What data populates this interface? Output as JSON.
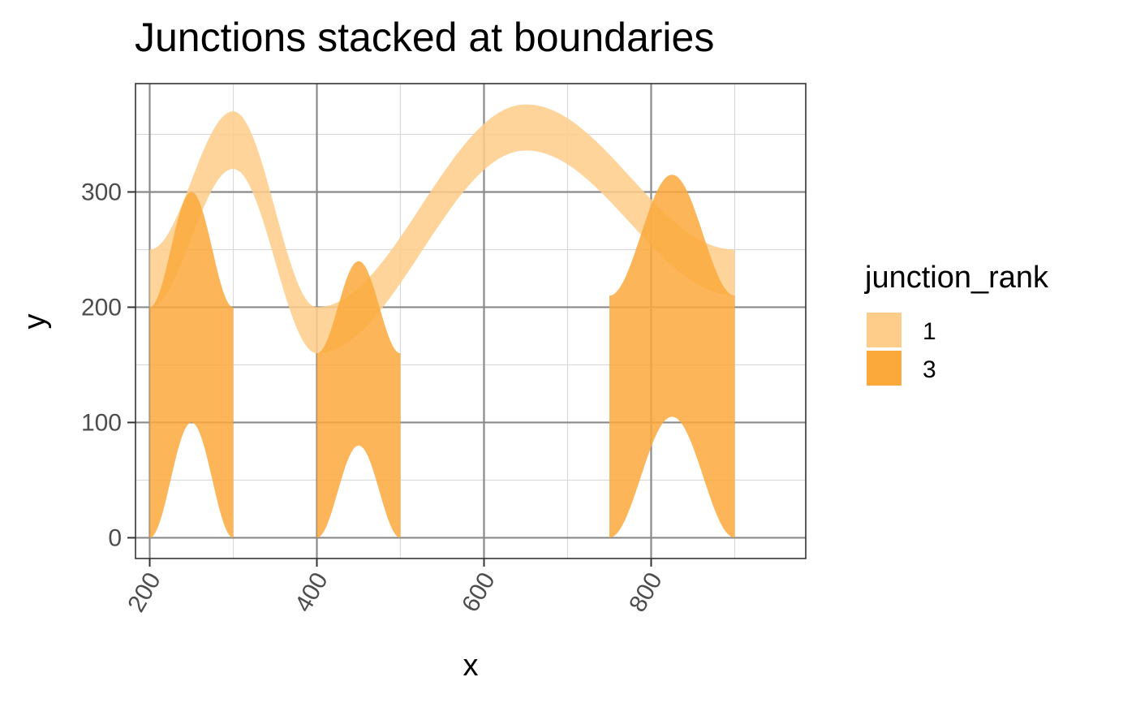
{
  "chart_data": {
    "type": "area",
    "title": "Junctions stacked at boundaries",
    "xlabel": "x",
    "ylabel": "y",
    "xlim": [
      183,
      985
    ],
    "ylim": [
      -18,
      394
    ],
    "x_ticks": [
      200,
      400,
      600,
      800
    ],
    "y_ticks": [
      0,
      100,
      200,
      300
    ],
    "x_tick_rotation": -60,
    "grid": true,
    "legend": {
      "title": "junction_rank",
      "position": "right",
      "entries": [
        {
          "label": "1",
          "color": "#fecd8a"
        },
        {
          "label": "3",
          "color": "#fca93c"
        }
      ]
    },
    "series": [
      {
        "name": "1",
        "color": "#fecd8a",
        "ribbons": [
          {
            "x0": 200,
            "x1": 400,
            "lower": [
              200,
              320,
              160
            ],
            "upper": [
              250,
              370,
              200
            ]
          },
          {
            "x0": 400,
            "x1": 900,
            "lower": [
              160,
              336,
              210
            ],
            "upper": [
              200,
              376,
              250
            ]
          }
        ]
      },
      {
        "name": "3",
        "color": "#fca93c",
        "ribbons": [
          {
            "x0": 200,
            "x1": 300,
            "lower": [
              0,
              100,
              0
            ],
            "upper": [
              200,
              300,
              200
            ]
          },
          {
            "x0": 400,
            "x1": 500,
            "lower": [
              0,
              80,
              0
            ],
            "upper": [
              160,
              240,
              160
            ]
          },
          {
            "x0": 750,
            "x1": 900,
            "lower": [
              0,
              105,
              0
            ],
            "upper": [
              210,
              315,
              210
            ]
          }
        ]
      }
    ]
  }
}
